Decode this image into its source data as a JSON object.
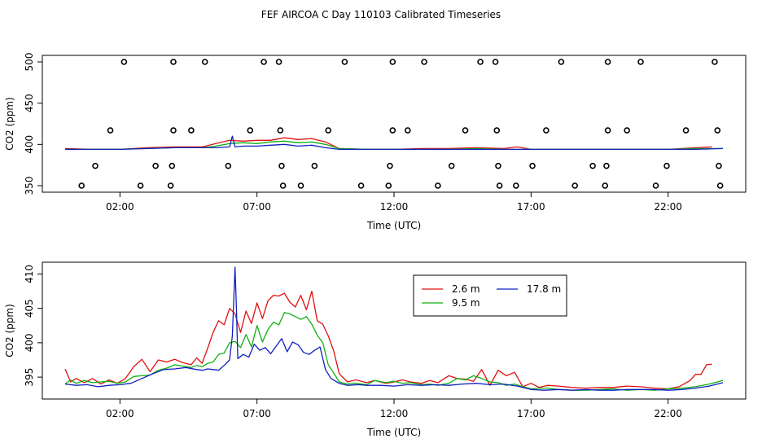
{
  "title": "FEF AIRCOA C  Day 110103  Calibrated Timeseries",
  "colors": {
    "s26": "#e01010",
    "s95": "#10b010",
    "s178": "#1020c0",
    "axis": "#000000"
  },
  "chart_data": [
    {
      "type": "scatter",
      "name": "top",
      "xlabel": "Time (UTC)",
      "ylabel": "CO2 (ppm)",
      "xlim": [
        0,
        24
      ],
      "ylim": [
        350,
        500
      ],
      "xticks": [
        2,
        7,
        12,
        17,
        22
      ],
      "xtick_labels": [
        "02:00",
        "07:00",
        "12:00",
        "17:00",
        "22:00"
      ],
      "yticks": [
        350,
        400,
        450,
        500
      ],
      "ytick_labels": [
        "350",
        "400",
        "450",
        "500"
      ],
      "circles": [
        {
          "x": 2.15,
          "y": 500
        },
        {
          "x": 3.95,
          "y": 500
        },
        {
          "x": 5.1,
          "y": 500
        },
        {
          "x": 7.25,
          "y": 500
        },
        {
          "x": 7.8,
          "y": 500
        },
        {
          "x": 10.2,
          "y": 500
        },
        {
          "x": 11.95,
          "y": 500
        },
        {
          "x": 13.1,
          "y": 500
        },
        {
          "x": 15.15,
          "y": 500
        },
        {
          "x": 15.7,
          "y": 500
        },
        {
          "x": 18.1,
          "y": 500
        },
        {
          "x": 19.8,
          "y": 500
        },
        {
          "x": 21.0,
          "y": 500
        },
        {
          "x": 23.7,
          "y": 500
        },
        {
          "x": 1.65,
          "y": 417
        },
        {
          "x": 3.95,
          "y": 417
        },
        {
          "x": 4.6,
          "y": 417
        },
        {
          "x": 6.75,
          "y": 417
        },
        {
          "x": 7.85,
          "y": 417
        },
        {
          "x": 9.6,
          "y": 417
        },
        {
          "x": 11.95,
          "y": 417
        },
        {
          "x": 12.5,
          "y": 417
        },
        {
          "x": 14.6,
          "y": 417
        },
        {
          "x": 15.75,
          "y": 417
        },
        {
          "x": 17.55,
          "y": 417
        },
        {
          "x": 19.8,
          "y": 417
        },
        {
          "x": 20.5,
          "y": 417
        },
        {
          "x": 22.65,
          "y": 417
        },
        {
          "x": 23.8,
          "y": 417
        },
        {
          "x": 1.1,
          "y": 374
        },
        {
          "x": 3.3,
          "y": 374
        },
        {
          "x": 3.9,
          "y": 374
        },
        {
          "x": 5.95,
          "y": 374
        },
        {
          "x": 7.9,
          "y": 374
        },
        {
          "x": 9.1,
          "y": 374
        },
        {
          "x": 11.85,
          "y": 374
        },
        {
          "x": 14.1,
          "y": 374
        },
        {
          "x": 15.8,
          "y": 374
        },
        {
          "x": 17.05,
          "y": 374
        },
        {
          "x": 19.25,
          "y": 374
        },
        {
          "x": 19.75,
          "y": 374
        },
        {
          "x": 21.95,
          "y": 374
        },
        {
          "x": 23.85,
          "y": 374
        },
        {
          "x": 0.6,
          "y": 350
        },
        {
          "x": 2.75,
          "y": 350
        },
        {
          "x": 3.85,
          "y": 350
        },
        {
          "x": 7.95,
          "y": 350
        },
        {
          "x": 8.6,
          "y": 350
        },
        {
          "x": 10.8,
          "y": 350
        },
        {
          "x": 11.8,
          "y": 350
        },
        {
          "x": 13.6,
          "y": 350
        },
        {
          "x": 15.85,
          "y": 350
        },
        {
          "x": 16.45,
          "y": 350
        },
        {
          "x": 18.6,
          "y": 350
        },
        {
          "x": 19.7,
          "y": 350
        },
        {
          "x": 21.55,
          "y": 350
        },
        {
          "x": 23.9,
          "y": 350
        }
      ],
      "series": [
        {
          "name": "2.6 m",
          "color_key": "s26",
          "x": [
            0,
            1,
            2,
            3,
            4,
            5,
            5.5,
            6,
            6.5,
            7,
            7.5,
            8,
            8.5,
            9,
            9.5,
            10,
            11,
            12,
            13,
            14,
            15,
            16,
            16.5,
            17,
            18,
            19,
            20,
            21,
            22,
            23,
            23.6
          ],
          "y": [
            395,
            394,
            394,
            396,
            397,
            397,
            401,
            405,
            404,
            405,
            405,
            408,
            406,
            407,
            403,
            395,
            394,
            394,
            395,
            395,
            396,
            395,
            397,
            394,
            394,
            394,
            394,
            394,
            394,
            396,
            397
          ]
        },
        {
          "name": "9.5 m",
          "color_key": "s95",
          "x": [
            0,
            1,
            2,
            3,
            4,
            5,
            5.5,
            6,
            6.5,
            7,
            7.5,
            8,
            8.5,
            9,
            9.5,
            10,
            11,
            12,
            13,
            14,
            15,
            16,
            17,
            18,
            19,
            20,
            21,
            22,
            23,
            24
          ],
          "y": [
            394,
            394,
            394,
            395,
            396,
            396,
            398,
            401,
            402,
            401,
            403,
            404,
            402,
            403,
            400,
            395,
            394,
            394,
            394,
            394,
            395,
            394,
            394,
            394,
            394,
            394,
            394,
            394,
            395,
            395
          ]
        },
        {
          "name": "17.8 m",
          "color_key": "s178",
          "x": [
            0,
            1,
            2,
            3,
            4,
            5,
            5.5,
            6,
            6.1,
            6.2,
            6.5,
            7,
            7.5,
            8,
            8.5,
            9,
            9.5,
            10,
            11,
            12,
            13,
            14,
            15,
            16,
            17,
            18,
            19,
            20,
            21,
            22,
            23,
            24
          ],
          "y": [
            394,
            394,
            394,
            395,
            396,
            396,
            396,
            397,
            410,
            397,
            398,
            398,
            399,
            400,
            398,
            399,
            396,
            394,
            394,
            394,
            394,
            394,
            394,
            394,
            394,
            394,
            394,
            394,
            394,
            394,
            394,
            395
          ]
        }
      ]
    },
    {
      "type": "line",
      "name": "bottom",
      "xlabel": "Time (UTC)",
      "ylabel": "CO2 (ppm)",
      "xlim": [
        0,
        24
      ],
      "ylim": [
        393,
        411
      ],
      "xticks": [
        2,
        7,
        12,
        17,
        22
      ],
      "xtick_labels": [
        "02:00",
        "07:00",
        "12:00",
        "17:00",
        "22:00"
      ],
      "yticks": [
        395,
        400,
        405,
        410
      ],
      "ytick_labels": [
        "395",
        "400",
        "405",
        "410"
      ],
      "legend": {
        "position": "top-center",
        "entries": [
          "2.6 m",
          "9.5 m",
          "17.8 m"
        ]
      },
      "series": [
        {
          "name": "2.6 m",
          "color_key": "s26",
          "x": [
            0,
            0.2,
            0.4,
            0.7,
            1,
            1.3,
            1.6,
            1.9,
            2.2,
            2.5,
            2.8,
            3.1,
            3.4,
            3.7,
            4,
            4.3,
            4.6,
            4.8,
            5,
            5.2,
            5.4,
            5.6,
            5.8,
            6,
            6.2,
            6.4,
            6.6,
            6.8,
            7,
            7.2,
            7.4,
            7.6,
            7.8,
            8,
            8.2,
            8.4,
            8.6,
            8.8,
            9,
            9.2,
            9.4,
            9.6,
            9.8,
            10,
            10.3,
            10.6,
            11,
            11.3,
            11.7,
            12,
            12.3,
            12.6,
            13,
            13.3,
            13.6,
            14,
            14.3,
            14.6,
            14.9,
            15.2,
            15.5,
            15.8,
            16.1,
            16.4,
            16.7,
            17,
            17.3,
            17.6,
            18,
            18.5,
            19,
            19.5,
            20,
            20.5,
            21,
            21.5,
            22,
            22.4,
            22.8,
            23,
            23.2,
            23.4,
            23.6
          ],
          "y": [
            396.2,
            394.3,
            394.8,
            394.2,
            394.8,
            394,
            394.6,
            394.1,
            394.8,
            396.5,
            397.6,
            395.8,
            397.5,
            397.2,
            397.6,
            397.1,
            396.8,
            397.8,
            397,
            399.2,
            401.5,
            403.2,
            402.6,
            405,
            404.2,
            401.5,
            404.6,
            402.8,
            405.8,
            403.5,
            406.1,
            406.9,
            406.8,
            407.2,
            405.9,
            405.2,
            406.9,
            404.8,
            407.5,
            403.2,
            402.7,
            401,
            398.8,
            395.5,
            394.3,
            394.6,
            394.2,
            394.5,
            394.1,
            394.3,
            394.6,
            394.3,
            394.1,
            394.5,
            394.2,
            395.2,
            394.8,
            394.7,
            394.4,
            396.1,
            393.8,
            396,
            395.2,
            395.7,
            393.6,
            394.1,
            393.5,
            393.8,
            393.7,
            393.5,
            393.4,
            393.5,
            393.5,
            393.7,
            393.6,
            393.4,
            393.3,
            393.6,
            394.5,
            395.4,
            395.4,
            396.8,
            396.9
          ]
        },
        {
          "name": "9.5 m",
          "color_key": "s95",
          "x": [
            0,
            0.2,
            0.4,
            0.7,
            1,
            1.3,
            1.6,
            1.9,
            2.2,
            2.5,
            2.8,
            3.1,
            3.4,
            3.7,
            4,
            4.3,
            4.6,
            4.8,
            5,
            5.2,
            5.4,
            5.6,
            5.8,
            6,
            6.2,
            6.4,
            6.6,
            6.8,
            7,
            7.2,
            7.4,
            7.6,
            7.8,
            8,
            8.2,
            8.4,
            8.6,
            8.8,
            9,
            9.2,
            9.4,
            9.6,
            9.8,
            10,
            10.3,
            10.6,
            11,
            11.3,
            11.7,
            12,
            12.3,
            12.6,
            13,
            13.3,
            13.6,
            14,
            14.3,
            14.6,
            14.9,
            15.2,
            15.5,
            15.8,
            16.1,
            16.4,
            16.7,
            17,
            17.3,
            17.6,
            18,
            18.5,
            19,
            19.5,
            20,
            20.5,
            21,
            21.5,
            22,
            22.5,
            23,
            23.5,
            24
          ],
          "y": [
            394,
            394.6,
            394.1,
            394.5,
            394.2,
            394.3,
            394.4,
            394.1,
            394.3,
            395.1,
            395.2,
            395.3,
            396,
            396.3,
            396.8,
            396.6,
            396.4,
            396.7,
            396.5,
            397,
            397.2,
            398.3,
            398.5,
            400,
            400.2,
            399.3,
            401.2,
            399.4,
            402.5,
            400.1,
            401.9,
            403,
            402.6,
            404.4,
            404.2,
            403.8,
            403.4,
            403.8,
            402.7,
            401.1,
            400,
            396.8,
            395.6,
            394.3,
            394,
            394.1,
            393.9,
            394.5,
            394.2,
            394.4,
            394.1,
            394.2,
            393.9,
            394,
            393.8,
            394.1,
            394.8,
            394.6,
            395.2,
            394.8,
            394.3,
            394.2,
            393.8,
            394,
            393.6,
            393.3,
            393.4,
            393.4,
            393.2,
            393.1,
            393.1,
            393.2,
            393.3,
            393.1,
            393.2,
            393.1,
            393.3,
            393.4,
            393.6,
            394,
            394.5
          ]
        },
        {
          "name": "17.8 m",
          "color_key": "s178",
          "x": [
            0,
            0.4,
            0.8,
            1.2,
            1.6,
            2,
            2.4,
            2.8,
            3.2,
            3.6,
            4,
            4.4,
            4.8,
            5,
            5.2,
            5.4,
            5.6,
            5.8,
            6,
            6.1,
            6.2,
            6.25,
            6.3,
            6.5,
            6.7,
            6.9,
            7.1,
            7.3,
            7.5,
            7.7,
            7.9,
            8.1,
            8.3,
            8.5,
            8.7,
            8.9,
            9.1,
            9.3,
            9.5,
            9.7,
            10,
            10.3,
            10.7,
            11,
            11.5,
            12,
            12.5,
            13,
            13.5,
            14,
            14.5,
            15,
            15.5,
            16,
            16.5,
            17,
            17.5,
            18,
            18.5,
            19,
            19.5,
            20,
            20.5,
            21,
            21.5,
            22,
            22.5,
            23,
            23.5,
            24
          ],
          "y": [
            394,
            393.8,
            393.9,
            393.6,
            393.8,
            393.9,
            394.1,
            394.8,
            395.5,
            396.1,
            396.2,
            396.4,
            396.1,
            396,
            396.2,
            396.1,
            396,
            396.7,
            397.5,
            401,
            411,
            405,
            397.7,
            398.3,
            397.9,
            399.8,
            398.9,
            399.3,
            398.4,
            399.5,
            400.6,
            398.7,
            400.1,
            399.7,
            398.6,
            398.3,
            398.9,
            399.4,
            396.1,
            394.8,
            394.1,
            393.8,
            393.9,
            393.8,
            393.8,
            393.7,
            393.9,
            393.8,
            393.9,
            393.8,
            394,
            394.1,
            393.9,
            394,
            393.7,
            393.2,
            393.1,
            393.2,
            393.1,
            393.2,
            393.1,
            393.1,
            393.2,
            393.2,
            393.2,
            393.1,
            393.2,
            393.4,
            393.7,
            394.2
          ]
        }
      ]
    }
  ]
}
